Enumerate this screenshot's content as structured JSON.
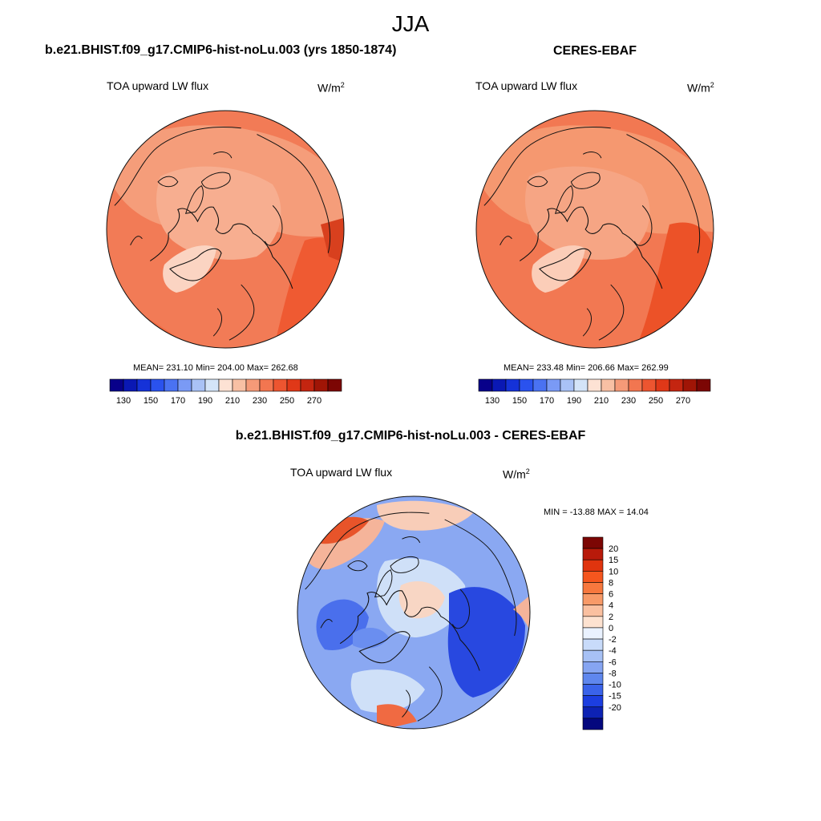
{
  "season": "JJA",
  "panels": [
    {
      "title": "b.e21.BHIST.f09_g17.CMIP6-hist-noLu.003 (yrs 1850-1874)",
      "variable": "TOA upward LW flux",
      "units_base": "W/m",
      "units_exp": "2",
      "stats": "MEAN= 231.10  Min= 204.00  Max= 262.68"
    },
    {
      "title": "CERES-EBAF",
      "variable": "TOA upward LW flux",
      "units_base": "W/m",
      "units_exp": "2",
      "stats": "MEAN= 233.48  Min= 206.66  Max= 262.99"
    },
    {
      "title": "b.e21.BHIST.f09_g17.CMIP6-hist-noLu.003 - CERES-EBAF",
      "variable": "TOA upward LW flux",
      "units_base": "W/m",
      "units_exp": "2",
      "stats": "MIN = -13.88 MAX =  14.04"
    }
  ],
  "abs_colorbar": {
    "colors": [
      "#08008a",
      "#0a18b4",
      "#1532d8",
      "#2a52ee",
      "#4a72f2",
      "#7a9af5",
      "#a9c2f6",
      "#d4e4f8",
      "#fde2d4",
      "#f8c0a4",
      "#f59a78",
      "#f27650",
      "#ed5530",
      "#e03818",
      "#c42510",
      "#a01506",
      "#7c0604"
    ],
    "tick_labels": [
      "130",
      "150",
      "170",
      "190",
      "210",
      "230",
      "250",
      "270"
    ]
  },
  "diff_colorbar": {
    "colors": [
      "#7c0604",
      "#b81a0a",
      "#e0340e",
      "#f5561e",
      "#f7783e",
      "#f89a68",
      "#fac0a0",
      "#fde2d0",
      "#eaf2ff",
      "#c8dbfa",
      "#a7c1f5",
      "#86a5f2",
      "#5f87ee",
      "#3a63ea",
      "#1c3ee0",
      "#0d22b4",
      "#04087e"
    ],
    "tick_labels": [
      "20",
      "15",
      "10",
      "8",
      "6",
      "4",
      "2",
      "0",
      "-2",
      "-4",
      "-6",
      "-8",
      "-10",
      "-15",
      "-20"
    ]
  },
  "colors": {
    "abs_base": "#f27b56",
    "abs_ocean_warm": "#ef5a32",
    "abs_land_mid": "#f59d7a",
    "abs_ice": "#fbd4c2",
    "diff_base": "#8aa8f2",
    "diff_light": "#cfe0f8",
    "diff_strong": "#2848e0",
    "diff_pos": "#f5b49a",
    "coast": "#111111"
  },
  "projection": "north-polar-stereographic"
}
